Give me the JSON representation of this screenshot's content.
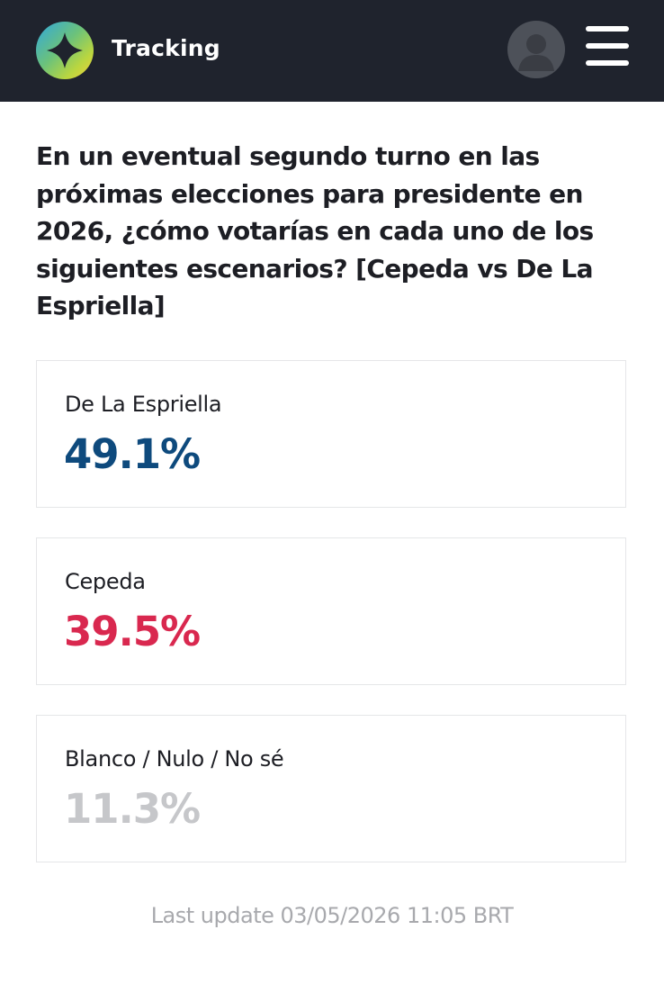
{
  "header": {
    "title": "Tracking",
    "logo_icon": "compass-logo-icon",
    "avatar_icon": "user-avatar-icon",
    "menu_icon": "hamburger-menu-icon",
    "background_color": "#1f232d",
    "logo_colors": [
      "#2fa7df",
      "#8dcf4a",
      "#f4d23a"
    ]
  },
  "question": {
    "text": "En un eventual segundo turno en las próximas elecciones para presidente en 2026, ¿cómo votarías en cada uno de los siguientes escenarios? [Cepeda vs De La Espriella]"
  },
  "results": [
    {
      "label": "De La Espriella",
      "value": "49.1%",
      "color": "#0e4a7d"
    },
    {
      "label": "Cepeda",
      "value": "39.5%",
      "color": "#d9284f"
    },
    {
      "label": "Blanco / Nulo / No sé",
      "value": "11.3%",
      "color": "#c6c7ca"
    }
  ],
  "footer": {
    "last_update": "Last update 03/05/2026 11:05 BRT"
  }
}
